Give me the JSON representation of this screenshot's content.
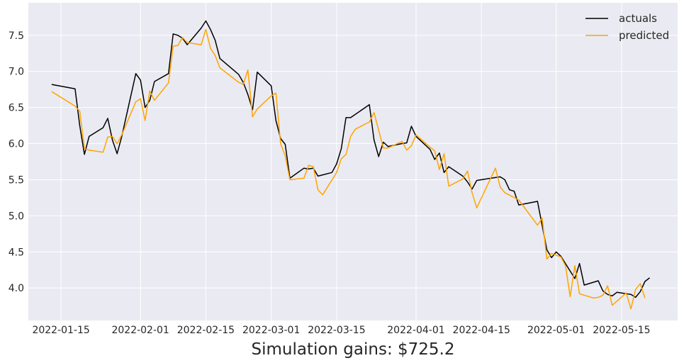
{
  "chart_data": {
    "type": "line",
    "title": "",
    "xlabel": "Simulation gains: $725.2",
    "ylabel": "",
    "grid": true,
    "legend_position": "top-right",
    "x_ticks": [
      "2022-01-15",
      "2022-02-01",
      "2022-02-15",
      "2022-03-01",
      "2022-03-15",
      "2022-04-01",
      "2022-04-15",
      "2022-05-01",
      "2022-05-15"
    ],
    "y_ticks": [
      "4.0",
      "4.5",
      "5.0",
      "5.5",
      "6.0",
      "6.5",
      "7.0",
      "7.5"
    ],
    "xlim": [
      "2022-01-08",
      "2022-05-27"
    ],
    "ylim": [
      3.55,
      7.95
    ],
    "series": [
      {
        "name": "actuals",
        "color": "#000000",
        "points": [
          [
            "2022-01-13",
            6.82
          ],
          [
            "2022-01-18",
            6.76
          ],
          [
            "2022-01-19",
            6.25
          ],
          [
            "2022-01-20",
            5.85
          ],
          [
            "2022-01-21",
            6.1
          ],
          [
            "2022-01-24",
            6.22
          ],
          [
            "2022-01-25",
            6.35
          ],
          [
            "2022-01-26",
            6.05
          ],
          [
            "2022-01-27",
            5.86
          ],
          [
            "2022-01-28",
            6.1
          ],
          [
            "2022-01-31",
            6.97
          ],
          [
            "2022-02-01",
            6.88
          ],
          [
            "2022-02-02",
            6.5
          ],
          [
            "2022-02-03",
            6.6
          ],
          [
            "2022-02-04",
            6.86
          ],
          [
            "2022-02-07",
            6.97
          ],
          [
            "2022-02-08",
            7.52
          ],
          [
            "2022-02-09",
            7.5
          ],
          [
            "2022-02-10",
            7.46
          ],
          [
            "2022-02-11",
            7.37
          ],
          [
            "2022-02-14",
            7.6
          ],
          [
            "2022-02-15",
            7.7
          ],
          [
            "2022-02-16",
            7.58
          ],
          [
            "2022-02-17",
            7.43
          ],
          [
            "2022-02-18",
            7.18
          ],
          [
            "2022-02-22",
            6.96
          ],
          [
            "2022-02-23",
            6.85
          ],
          [
            "2022-02-24",
            6.68
          ],
          [
            "2022-02-25",
            6.47
          ],
          [
            "2022-02-26",
            6.99
          ],
          [
            "2022-03-01",
            6.8
          ],
          [
            "2022-03-02",
            6.32
          ],
          [
            "2022-03-03",
            6.07
          ],
          [
            "2022-03-04",
            5.99
          ],
          [
            "2022-03-05",
            5.52
          ],
          [
            "2022-03-08",
            5.66
          ],
          [
            "2022-03-09",
            5.65
          ],
          [
            "2022-03-10",
            5.66
          ],
          [
            "2022-03-11",
            5.55
          ],
          [
            "2022-03-14",
            5.6
          ],
          [
            "2022-03-15",
            5.72
          ],
          [
            "2022-03-16",
            5.93
          ],
          [
            "2022-03-17",
            6.36
          ],
          [
            "2022-03-18",
            6.36
          ],
          [
            "2022-03-22",
            6.54
          ],
          [
            "2022-03-23",
            6.05
          ],
          [
            "2022-03-24",
            5.82
          ],
          [
            "2022-03-25",
            6.02
          ],
          [
            "2022-03-26",
            5.96
          ],
          [
            "2022-03-29",
            6.0
          ],
          [
            "2022-03-30",
            6.01
          ],
          [
            "2022-03-31",
            6.24
          ],
          [
            "2022-04-01",
            6.1
          ],
          [
            "2022-04-04",
            5.92
          ],
          [
            "2022-04-05",
            5.78
          ],
          [
            "2022-04-06",
            5.87
          ],
          [
            "2022-04-07",
            5.6
          ],
          [
            "2022-04-08",
            5.68
          ],
          [
            "2022-04-11",
            5.55
          ],
          [
            "2022-04-12",
            5.47
          ],
          [
            "2022-04-13",
            5.37
          ],
          [
            "2022-04-14",
            5.49
          ],
          [
            "2022-04-18",
            5.53
          ],
          [
            "2022-04-19",
            5.54
          ],
          [
            "2022-04-20",
            5.5
          ],
          [
            "2022-04-21",
            5.36
          ],
          [
            "2022-04-22",
            5.34
          ],
          [
            "2022-04-23",
            5.15
          ],
          [
            "2022-04-27",
            5.2
          ],
          [
            "2022-04-29",
            4.53
          ],
          [
            "2022-04-30",
            4.42
          ],
          [
            "2022-05-01",
            4.5
          ],
          [
            "2022-05-02",
            4.44
          ],
          [
            "2022-05-05",
            4.13
          ],
          [
            "2022-05-06",
            4.34
          ],
          [
            "2022-05-07",
            4.04
          ],
          [
            "2022-05-10",
            4.1
          ],
          [
            "2022-05-11",
            3.96
          ],
          [
            "2022-05-12",
            3.91
          ],
          [
            "2022-05-13",
            3.89
          ],
          [
            "2022-05-14",
            3.94
          ],
          [
            "2022-05-17",
            3.91
          ],
          [
            "2022-05-18",
            3.87
          ],
          [
            "2022-05-19",
            3.95
          ],
          [
            "2022-05-20",
            4.09
          ],
          [
            "2022-05-21",
            4.14
          ]
        ]
      },
      {
        "name": "predicted",
        "color": "#ffa500",
        "points": [
          [
            "2022-01-13",
            6.72
          ],
          [
            "2022-01-18",
            6.52
          ],
          [
            "2022-01-19",
            6.45
          ],
          [
            "2022-01-20",
            5.93
          ],
          [
            "2022-01-21",
            5.91
          ],
          [
            "2022-01-24",
            5.88
          ],
          [
            "2022-01-25",
            6.09
          ],
          [
            "2022-01-26",
            6.1
          ],
          [
            "2022-01-27",
            6.0
          ],
          [
            "2022-01-28",
            6.12
          ],
          [
            "2022-01-31",
            6.58
          ],
          [
            "2022-02-01",
            6.62
          ],
          [
            "2022-02-02",
            6.32
          ],
          [
            "2022-02-03",
            6.73
          ],
          [
            "2022-02-04",
            6.6
          ],
          [
            "2022-02-07",
            6.84
          ],
          [
            "2022-02-08",
            7.35
          ],
          [
            "2022-02-09",
            7.36
          ],
          [
            "2022-02-10",
            7.47
          ],
          [
            "2022-02-11",
            7.4
          ],
          [
            "2022-02-14",
            7.37
          ],
          [
            "2022-02-15",
            7.58
          ],
          [
            "2022-02-16",
            7.32
          ],
          [
            "2022-02-17",
            7.22
          ],
          [
            "2022-02-18",
            7.05
          ],
          [
            "2022-02-22",
            6.85
          ],
          [
            "2022-02-23",
            6.82
          ],
          [
            "2022-02-24",
            7.02
          ],
          [
            "2022-02-25",
            6.37
          ],
          [
            "2022-02-26",
            6.48
          ],
          [
            "2022-03-01",
            6.66
          ],
          [
            "2022-03-02",
            6.7
          ],
          [
            "2022-03-03",
            6.0
          ],
          [
            "2022-03-04",
            5.83
          ],
          [
            "2022-03-05",
            5.5
          ],
          [
            "2022-03-08",
            5.52
          ],
          [
            "2022-03-09",
            5.7
          ],
          [
            "2022-03-10",
            5.68
          ],
          [
            "2022-03-11",
            5.36
          ],
          [
            "2022-03-12",
            5.29
          ],
          [
            "2022-03-15",
            5.6
          ],
          [
            "2022-03-16",
            5.79
          ],
          [
            "2022-03-17",
            5.85
          ],
          [
            "2022-03-18",
            6.1
          ],
          [
            "2022-03-19",
            6.2
          ],
          [
            "2022-03-22",
            6.3
          ],
          [
            "2022-03-23",
            6.43
          ],
          [
            "2022-03-25",
            5.94
          ],
          [
            "2022-03-26",
            5.94
          ],
          [
            "2022-03-29",
            6.03
          ],
          [
            "2022-03-30",
            5.91
          ],
          [
            "2022-03-31",
            5.97
          ],
          [
            "2022-04-01",
            6.12
          ],
          [
            "2022-04-04",
            5.95
          ],
          [
            "2022-04-05",
            5.9
          ],
          [
            "2022-04-06",
            5.64
          ],
          [
            "2022-04-07",
            5.86
          ],
          [
            "2022-04-08",
            5.41
          ],
          [
            "2022-04-11",
            5.51
          ],
          [
            "2022-04-12",
            5.62
          ],
          [
            "2022-04-13",
            5.32
          ],
          [
            "2022-04-14",
            5.11
          ],
          [
            "2022-04-18",
            5.66
          ],
          [
            "2022-04-19",
            5.4
          ],
          [
            "2022-04-20",
            5.32
          ],
          [
            "2022-04-23",
            5.22
          ],
          [
            "2022-04-27",
            4.87
          ],
          [
            "2022-04-28",
            4.97
          ],
          [
            "2022-04-29",
            4.4
          ],
          [
            "2022-04-30",
            4.48
          ],
          [
            "2022-05-02",
            4.43
          ],
          [
            "2022-05-03",
            4.31
          ],
          [
            "2022-05-04",
            3.88
          ],
          [
            "2022-05-05",
            4.31
          ],
          [
            "2022-05-06",
            3.92
          ],
          [
            "2022-05-09",
            3.86
          ],
          [
            "2022-05-10",
            3.87
          ],
          [
            "2022-05-11",
            3.9
          ],
          [
            "2022-05-12",
            4.03
          ],
          [
            "2022-05-13",
            3.76
          ],
          [
            "2022-05-16",
            3.93
          ],
          [
            "2022-05-17",
            3.71
          ],
          [
            "2022-05-18",
            3.98
          ],
          [
            "2022-05-19",
            4.06
          ],
          [
            "2022-05-20",
            3.86
          ]
        ]
      }
    ]
  }
}
